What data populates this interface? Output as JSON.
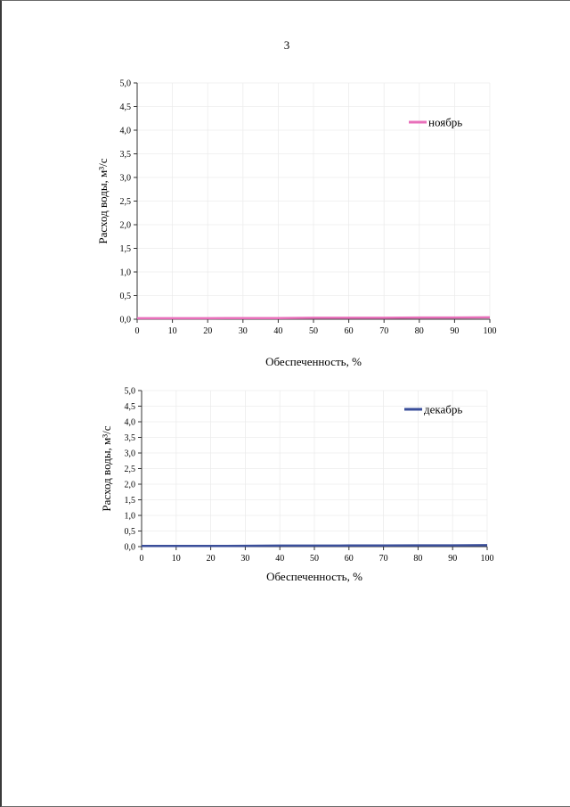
{
  "page": {
    "number": "3"
  },
  "chart_data": [
    {
      "type": "line",
      "xlabel": "Обеспеченность, %",
      "ylabel": "Расход воды, м³/с",
      "xlim": [
        0,
        100
      ],
      "ylim": [
        0,
        5.0
      ],
      "x_ticks": [
        "0",
        "10",
        "20",
        "30",
        "40",
        "50",
        "60",
        "70",
        "80",
        "90",
        "100"
      ],
      "y_ticks": [
        "0,0",
        "0,5",
        "1,0",
        "1,5",
        "2,0",
        "2,5",
        "3,0",
        "3,5",
        "4,0",
        "4,5",
        "5,0"
      ],
      "grid": true,
      "legend_position": "top-right",
      "series": [
        {
          "name": "ноябрь",
          "color": "#e86fba",
          "x": [
            0,
            10,
            20,
            30,
            40,
            50,
            60,
            70,
            80,
            90,
            100
          ],
          "values": [
            0.02,
            0.02,
            0.02,
            0.025,
            0.025,
            0.03,
            0.03,
            0.03,
            0.035,
            0.035,
            0.04
          ]
        }
      ]
    },
    {
      "type": "line",
      "xlabel": "Обеспеченность, %",
      "ylabel": "Расход воды, м³/с",
      "xlim": [
        0,
        100
      ],
      "ylim": [
        0,
        5.0
      ],
      "x_ticks": [
        "0",
        "10",
        "20",
        "30",
        "40",
        "50",
        "60",
        "70",
        "80",
        "90",
        "100"
      ],
      "y_ticks": [
        "0,0",
        "0,5",
        "1,0",
        "1,5",
        "2,0",
        "2,5",
        "3,0",
        "3,5",
        "4,0",
        "4,5",
        "5,0"
      ],
      "grid": true,
      "legend_position": "top-right",
      "series": [
        {
          "name": "декабрь",
          "color": "#3a4e9a",
          "x": [
            0,
            10,
            20,
            30,
            40,
            50,
            60,
            70,
            80,
            90,
            100
          ],
          "values": [
            0.02,
            0.02,
            0.02,
            0.025,
            0.03,
            0.03,
            0.035,
            0.035,
            0.04,
            0.04,
            0.045
          ]
        }
      ]
    }
  ]
}
